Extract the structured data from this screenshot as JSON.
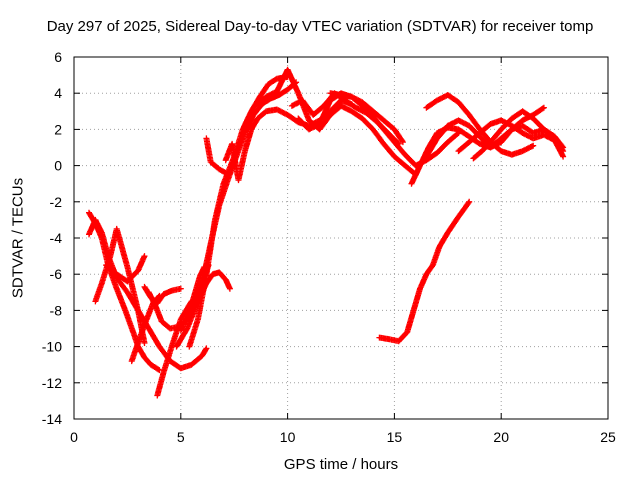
{
  "chart_data": {
    "type": "scatter",
    "title": "Day 297 of 2025, Sidereal Day-to-day VTEC variation (SDTVAR) for receiver tomp",
    "xlabel": "GPS time / hours",
    "ylabel": "SDTVAR / TECUs",
    "xlim": [
      0,
      25
    ],
    "ylim": [
      -14,
      6
    ],
    "xticks": [
      "0",
      "5",
      "10",
      "15",
      "20",
      "25"
    ],
    "yticks": [
      "-14",
      "-12",
      "-10",
      "-8",
      "-6",
      "-4",
      "-2",
      "0",
      "2",
      "4",
      "6"
    ],
    "grid": true,
    "marker": "plus",
    "color": "#ff0000",
    "series": [
      {
        "x": [
          0.7,
          1.0,
          1.3,
          1.6,
          2.0,
          2.4,
          2.8,
          3.0,
          3.3,
          3.6,
          4.0
        ],
        "y": [
          -2.6,
          -3.2,
          -4.0,
          -5.5,
          -6.8,
          -8.0,
          -9.3,
          -10.0,
          -10.6,
          -11.0,
          -11.3
        ]
      },
      {
        "x": [
          0.7,
          1.0,
          1.3,
          1.6,
          2.0,
          2.5,
          3.0,
          3.5,
          4.0,
          4.5,
          5.0,
          5.5,
          6.0,
          6.2
        ],
        "y": [
          -3.8,
          -3.0,
          -3.7,
          -5.0,
          -6.2,
          -7.0,
          -8.0,
          -9.0,
          -10.0,
          -10.8,
          -11.2,
          -11.0,
          -10.5,
          -10.1
        ]
      },
      {
        "x": [
          1.0,
          1.3,
          1.7,
          2.0,
          2.5,
          3.0,
          3.3
        ],
        "y": [
          -7.5,
          -6.5,
          -5.0,
          -3.5,
          -5.6,
          -8.0,
          -9.8
        ]
      },
      {
        "x": [
          1.5,
          2.0,
          2.5,
          3.0,
          3.3
        ],
        "y": [
          -5.5,
          -6.0,
          -6.4,
          -5.8,
          -5.0
        ]
      },
      {
        "x": [
          2.7,
          3.0,
          3.3,
          3.7,
          4.0
        ],
        "y": [
          -10.8,
          -9.8,
          -8.8,
          -7.6,
          -7.2
        ]
      },
      {
        "x": [
          3.3,
          3.6,
          3.9,
          4.2,
          4.6,
          5.0
        ],
        "y": [
          -6.7,
          -7.3,
          -7.6,
          -7.1,
          -6.9,
          -6.8
        ]
      },
      {
        "x": [
          3.5,
          3.8,
          4.1,
          4.5,
          4.9,
          5.3,
          5.7,
          6.0,
          6.3
        ],
        "y": [
          -7.0,
          -7.7,
          -8.6,
          -9.0,
          -8.9,
          -8.5,
          -7.5,
          -6.5,
          -5.5
        ]
      },
      {
        "x": [
          3.9,
          4.2,
          4.6,
          5.0,
          5.5
        ],
        "y": [
          -12.7,
          -11.4,
          -9.9,
          -8.5,
          -7.5
        ]
      },
      {
        "x": [
          5.0,
          5.3,
          5.6,
          5.9,
          6.1
        ],
        "y": [
          -9.1,
          -8.3,
          -7.3,
          -6.1,
          -5.6
        ]
      },
      {
        "x": [
          4.8,
          5.3,
          5.8,
          6.2,
          6.5,
          6.8,
          7.1,
          7.3
        ],
        "y": [
          -10.0,
          -9.0,
          -7.5,
          -6.5,
          -6.0,
          -5.9,
          -6.3,
          -6.8
        ]
      },
      {
        "x": [
          5.4,
          5.8,
          6.2,
          6.6,
          7.0,
          7.5,
          7.9,
          8.3,
          8.7,
          9.1,
          9.5,
          10.0
        ],
        "y": [
          -10.0,
          -8.5,
          -6.0,
          -3.0,
          -1.0,
          0.5,
          2.0,
          3.0,
          3.8,
          4.5,
          4.8,
          4.9
        ]
      },
      {
        "x": [
          6.2,
          6.4,
          6.8,
          7.1
        ],
        "y": [
          1.5,
          0.2,
          -0.2,
          -0.4
        ]
      },
      {
        "x": [
          6.0,
          6.4,
          6.8,
          7.2,
          7.6,
          8.0,
          8.4,
          8.8,
          9.2,
          9.6,
          10.0,
          10.4
        ],
        "y": [
          -6.5,
          -4.3,
          -2.2,
          -0.8,
          0.5,
          1.8,
          2.8,
          3.4,
          3.7,
          3.9,
          4.2,
          4.6
        ]
      },
      {
        "x": [
          7.1,
          7.4,
          7.7,
          8.0,
          8.3,
          8.6,
          9.0,
          9.5,
          10.0,
          10.5,
          11.0,
          11.5,
          12.0,
          12.5,
          13.0
        ],
        "y": [
          0.3,
          1.2,
          -0.8,
          0.8,
          2.0,
          2.6,
          3.0,
          3.1,
          2.8,
          2.4,
          2.2,
          2.5,
          3.0,
          3.6,
          3.4
        ]
      },
      {
        "x": [
          8.6,
          9.0,
          9.5,
          10.0,
          10.5,
          11.0,
          11.5,
          12.0,
          12.5,
          13.0,
          13.5,
          14.0,
          14.5,
          15.0,
          15.5,
          16.0
        ],
        "y": [
          3.4,
          3.8,
          4.1,
          5.3,
          4.0,
          2.5,
          2.0,
          2.8,
          3.3,
          3.0,
          2.6,
          2.0,
          1.2,
          0.5,
          0.0,
          -0.5
        ]
      },
      {
        "x": [
          10.2,
          10.7,
          11.2,
          11.7,
          12.2,
          12.7,
          13.2,
          13.7,
          14.2,
          14.7,
          15.2
        ],
        "y": [
          3.3,
          3.6,
          2.8,
          3.3,
          4.0,
          3.6,
          3.2,
          2.9,
          2.4,
          1.8,
          1.2
        ]
      },
      {
        "x": [
          10.5,
          11.0,
          11.5,
          12.0,
          12.5,
          13.0,
          13.5,
          14.0,
          14.5,
          15.0,
          15.4
        ],
        "y": [
          2.6,
          2.0,
          2.3,
          3.6,
          4.0,
          3.8,
          3.5,
          3.0,
          2.5,
          2.0,
          1.3
        ]
      },
      {
        "x": [
          12.0,
          12.5,
          13.0,
          13.5,
          14.0,
          14.5,
          15.0,
          15.5,
          16.0,
          16.5,
          17.0,
          17.5,
          18.0
        ],
        "y": [
          4.0,
          3.9,
          3.8,
          3.3,
          2.7,
          2.0,
          1.3,
          0.6,
          0.0,
          0.3,
          0.7,
          1.3,
          1.8
        ]
      },
      {
        "x": [
          14.3,
          14.8,
          15.2,
          15.6,
          15.9,
          16.2,
          16.5,
          16.8,
          17.1,
          17.5,
          17.9,
          18.2,
          18.5
        ],
        "y": [
          -9.5,
          -9.6,
          -9.7,
          -9.2,
          -8.0,
          -6.8,
          -6.0,
          -5.5,
          -4.5,
          -3.7,
          -3.0,
          -2.5,
          -2.0
        ]
      },
      {
        "x": [
          15.8,
          16.2,
          16.6,
          17.0,
          17.5,
          18.0,
          18.5,
          19.0,
          19.5,
          20.0,
          20.5,
          21.0,
          21.5,
          22.0
        ],
        "y": [
          -1.0,
          0.0,
          1.0,
          1.8,
          2.1,
          2.0,
          1.6,
          1.2,
          1.0,
          1.5,
          2.0,
          2.5,
          2.8,
          3.2
        ]
      },
      {
        "x": [
          16.5,
          17.0,
          17.5,
          18.0,
          18.5,
          19.0,
          19.5,
          20.0,
          20.5,
          21.0,
          21.5,
          22.0,
          22.5,
          22.9
        ],
        "y": [
          0.5,
          1.5,
          2.2,
          2.5,
          2.2,
          1.6,
          1.0,
          1.3,
          2.0,
          2.2,
          1.8,
          2.0,
          1.6,
          0.8
        ]
      },
      {
        "x": [
          16.5,
          17.0,
          17.5,
          18.0,
          18.5,
          19.0,
          19.5,
          20.0,
          20.5,
          21.0,
          21.5
        ],
        "y": [
          3.2,
          3.6,
          3.9,
          3.5,
          2.8,
          2.0,
          1.3,
          0.8,
          0.6,
          0.8,
          1.1
        ]
      },
      {
        "x": [
          18.0,
          18.5,
          19.0,
          19.5,
          20.0,
          20.5,
          21.0,
          21.5,
          22.0,
          22.5,
          22.9
        ],
        "y": [
          0.8,
          1.3,
          1.8,
          2.3,
          2.5,
          2.2,
          1.8,
          1.5,
          1.7,
          1.4,
          0.5
        ]
      },
      {
        "x": [
          18.7,
          19.1,
          19.5,
          20.0,
          20.5,
          21.0,
          21.5,
          22.0,
          22.5,
          22.9
        ],
        "y": [
          0.4,
          0.8,
          1.3,
          2.0,
          2.6,
          3.0,
          2.6,
          2.0,
          1.6,
          1.0
        ]
      }
    ]
  }
}
